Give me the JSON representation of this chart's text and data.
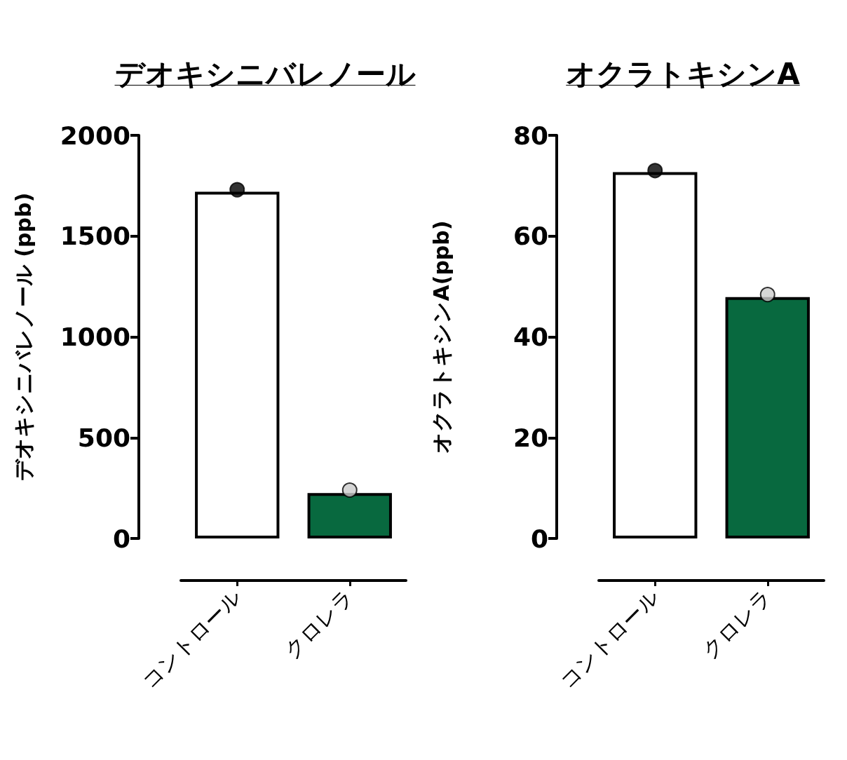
{
  "chart_data": [
    {
      "type": "bar",
      "title": "デオキシニバレノール",
      "ylabel": "デオキシニバレノール (ppb)",
      "categories": [
        "コントロール",
        "クロレラ"
      ],
      "ylim": [
        0,
        2000
      ],
      "yticks": [
        0,
        500,
        1000,
        1500,
        2000
      ],
      "marker": "circle",
      "series": [
        {
          "type": "bar",
          "colors": [
            "#ffffff",
            "#08693f"
          ],
          "values": [
            1720,
            225
          ]
        },
        {
          "type": "scatter",
          "x": [
            "コントロール",
            "クロレラ"
          ],
          "colors": [
            "#000000",
            "#cccccc"
          ],
          "values": [
            1730,
            240
          ]
        }
      ]
    },
    {
      "type": "bar",
      "title": "オクラトキシンA",
      "ylabel": "オクラトキシンA(ppb)",
      "categories": [
        "コントロール",
        "クロレラ"
      ],
      "ylim": [
        0,
        80
      ],
      "yticks": [
        0,
        20,
        40,
        60,
        80
      ],
      "marker": "circle",
      "series": [
        {
          "type": "bar",
          "colors": [
            "#ffffff",
            "#08693f"
          ],
          "values": [
            72.7,
            47.9
          ]
        },
        {
          "type": "scatter",
          "x": [
            "コントロール",
            "クロレラ"
          ],
          "colors": [
            "#000000",
            "#cccccc"
          ],
          "values": [
            73,
            48.4
          ]
        }
      ]
    }
  ]
}
